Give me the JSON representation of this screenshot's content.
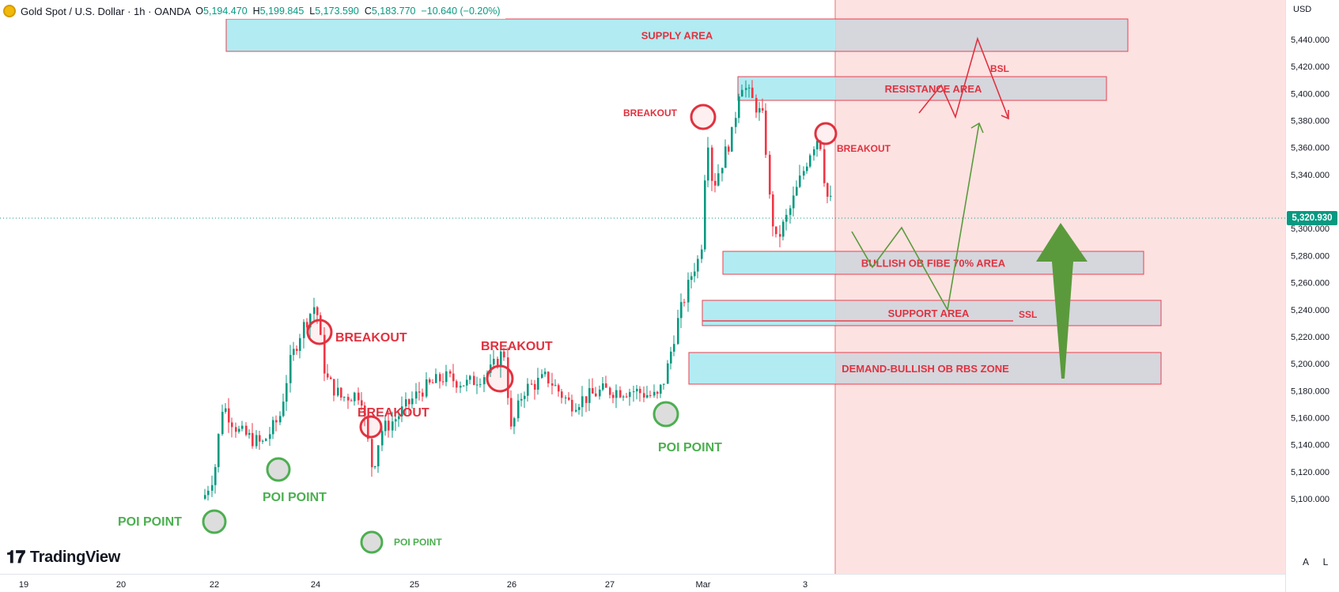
{
  "header": {
    "symbol": "Gold Spot / U.S. Dollar · 1h · OANDA",
    "open_label": "O",
    "open": "5,194.470",
    "high_label": "H",
    "high": "5,199.845",
    "low_label": "L",
    "low": "5,173.590",
    "close_label": "C",
    "close": "5,183.770",
    "change": "−10.640 (−0.20%)"
  },
  "price_axis": {
    "currency": "USD",
    "ticks": [
      "5,440.000",
      "5,420.000",
      "5,400.000",
      "5,380.000",
      "5,360.000",
      "5,340.000",
      "5,300.000",
      "5,280.000",
      "5,260.000",
      "5,240.000",
      "5,220.000",
      "5,200.000",
      "5,180.000",
      "5,160.000",
      "5,140.000",
      "5,120.000",
      "5,100.000"
    ],
    "current_price": "5,320.930"
  },
  "time_axis": {
    "labels": [
      "19",
      "20",
      "22",
      "24",
      "25",
      "26",
      "27",
      "Mar",
      "3"
    ]
  },
  "annotations": {
    "zones": [
      "SUPPLY AREA",
      "RESISTANCE AREA",
      "BULLISH OB FIBE 70% AREA",
      "SUPPORT AREA",
      "DEMAND-BULLISH OB RBS ZONE"
    ],
    "breakouts": [
      "BREAKOUT",
      "BREAKOUT",
      "BREAKOUT",
      "BREAKOUT",
      "BREAKOUT"
    ],
    "poi_points": [
      "POI POINT",
      "POI POINT",
      "POI POINT",
      "POI POINT"
    ],
    "liquidity": [
      "BSL",
      "SSL"
    ]
  },
  "branding": {
    "logo_text": "TradingView"
  },
  "controls": {
    "auto_label": "A",
    "log_label": "L"
  },
  "colors": {
    "up": "#089981",
    "down": "#f23645",
    "zone_fill": "#b2ebf2",
    "zone_border": "#e8424f",
    "future_shade": "#fde2e2",
    "poi": "#4caf50",
    "breakout": "#e0323f",
    "arrow_green": "#5b9a3c"
  }
}
